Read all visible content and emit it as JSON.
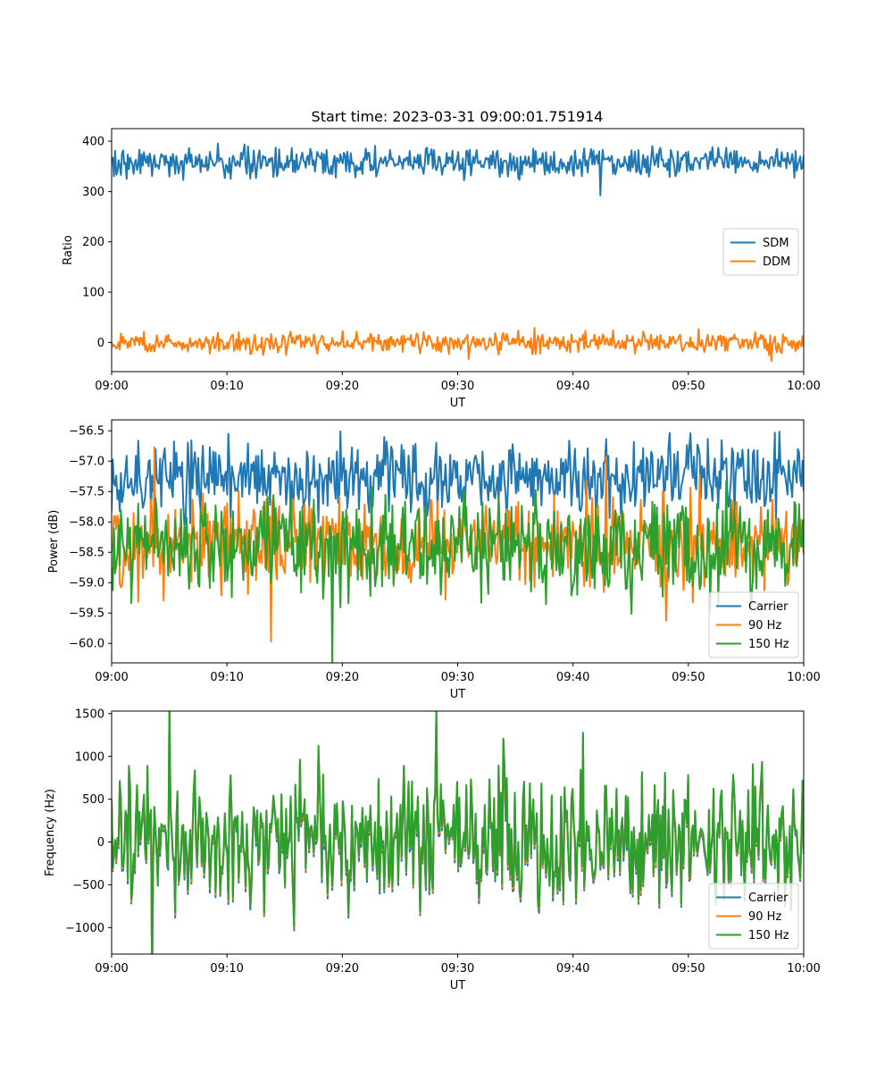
{
  "figure": {
    "title": "Start time: 2023-03-31 09:00:01.751914"
  },
  "chart_data": [
    {
      "type": "line",
      "title": "Start time: 2023-03-31 09:00:01.751914",
      "xlabel": "UT",
      "ylabel": "Ratio",
      "x_range": [
        "09:00",
        "10:00"
      ],
      "xticks": [
        "09:00",
        "09:10",
        "09:20",
        "09:30",
        "09:40",
        "09:50",
        "10:00"
      ],
      "ylim": [
        -58,
        425
      ],
      "yticks": [
        0,
        100,
        200,
        300,
        400
      ],
      "ytick_labels": [
        "0",
        "100",
        "200",
        "300",
        "400"
      ],
      "legend": "center-right",
      "series": [
        {
          "name": "SDM",
          "color": "#1f77b4",
          "mean": 358,
          "amplitude": 14
        },
        {
          "name": "DDM",
          "color": "#ff7f0e",
          "mean": 0,
          "amplitude": 10
        }
      ]
    },
    {
      "type": "line",
      "title": "",
      "xlabel": "UT",
      "ylabel": "Power (dB)",
      "x_range": [
        "09:00",
        "10:00"
      ],
      "xticks": [
        "09:00",
        "09:10",
        "09:20",
        "09:30",
        "09:40",
        "09:50",
        "10:00"
      ],
      "ylim": [
        -60.32,
        -56.32
      ],
      "yticks": [
        -60.0,
        -59.5,
        -59.0,
        -58.5,
        -58.0,
        -57.5,
        -57.0,
        -56.5
      ],
      "ytick_labels": [
        "−60.0",
        "−59.5",
        "−59.0",
        "−58.5",
        "−58.0",
        "−57.5",
        "−57.0",
        "−56.5"
      ],
      "legend": "lower-right",
      "series": [
        {
          "name": "Carrier",
          "color": "#1f77b4",
          "mean": -57.3,
          "amplitude": 0.3
        },
        {
          "name": "90 Hz",
          "color": "#ff7f0e",
          "mean": -58.35,
          "amplitude": 0.35
        },
        {
          "name": "150 Hz",
          "color": "#2ca02c",
          "mean": -58.4,
          "amplitude": 0.4
        }
      ]
    },
    {
      "type": "line",
      "title": "",
      "xlabel": "UT",
      "ylabel": "Frequency (Hz)",
      "x_range": [
        "09:00",
        "10:00"
      ],
      "xticks": [
        "09:00",
        "09:10",
        "09:20",
        "09:30",
        "09:40",
        "09:50",
        "10:00"
      ],
      "ylim": [
        -1310,
        1530
      ],
      "yticks": [
        -1000,
        -500,
        0,
        500,
        1000,
        1500
      ],
      "ytick_labels": [
        "−1000",
        "−500",
        "0",
        "500",
        "1000",
        "1500"
      ],
      "legend": "lower-right",
      "series": [
        {
          "name": "Carrier",
          "color": "#1f77b4",
          "mean": -30,
          "amplitude": 380
        },
        {
          "name": "90 Hz",
          "color": "#ff7f0e",
          "mean": 0,
          "amplitude": 380
        },
        {
          "name": "150 Hz",
          "color": "#2ca02c",
          "mean": 20,
          "amplitude": 380
        }
      ]
    }
  ]
}
